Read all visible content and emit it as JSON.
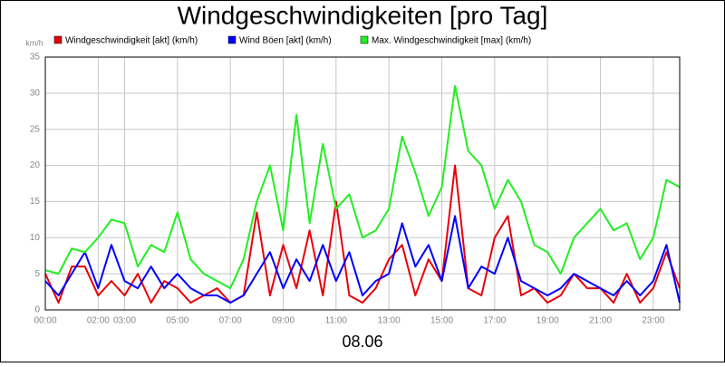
{
  "chart_data": {
    "type": "line",
    "title": "Windgeschwindigkeiten [pro Tag]",
    "y_unit": "km/h",
    "x_label": "08.06",
    "x": [
      0,
      0.5,
      1,
      1.5,
      2,
      2.5,
      3,
      3.5,
      4,
      4.5,
      5,
      5.5,
      6,
      6.5,
      7,
      7.5,
      8,
      8.5,
      9,
      9.5,
      10,
      10.5,
      11,
      11.5,
      12,
      12.5,
      13,
      13.5,
      14,
      14.5,
      15,
      15.5,
      16,
      16.5,
      17,
      17.5,
      18,
      18.5,
      19,
      19.5,
      20,
      20.5,
      21,
      21.5,
      22,
      22.5,
      23,
      23.5,
      24
    ],
    "series": [
      {
        "name": "Windgeschwindigkeit [akt] (km/h)",
        "color": "#e8000a",
        "values": [
          5,
          1,
          6,
          6,
          2,
          4,
          2,
          5,
          1,
          4,
          3,
          1,
          2,
          3,
          1,
          2,
          13.5,
          2,
          9,
          3,
          11,
          2,
          15,
          2,
          1,
          3,
          7,
          9,
          2,
          7,
          4,
          20,
          3,
          2,
          10,
          13,
          2,
          3,
          1,
          2,
          5,
          3,
          3,
          1,
          5,
          1,
          3,
          8,
          3
        ]
      },
      {
        "name": "Wind Böen [akt] (km/h)",
        "color": "#0000ff",
        "values": [
          4,
          2,
          5,
          8,
          3,
          9,
          4,
          3,
          6,
          3,
          5,
          3,
          2,
          2,
          1,
          2,
          5,
          8,
          3,
          7,
          4,
          9,
          4,
          8,
          2,
          4,
          5,
          12,
          6,
          9,
          4,
          13,
          3,
          6,
          5,
          10,
          4,
          3,
          2,
          3,
          5,
          4,
          3,
          2,
          4,
          2,
          4,
          9,
          1
        ]
      },
      {
        "name": "Max. Windgeschwindigkeit [max] (km/h)",
        "color": "#22ee22",
        "values": [
          5.5,
          5,
          8.5,
          8,
          10,
          12.5,
          12,
          6,
          9,
          8,
          13.5,
          7,
          5,
          4,
          3,
          7,
          15,
          20,
          11,
          27,
          12,
          23,
          14,
          16,
          10,
          11,
          14,
          24,
          19,
          13,
          17,
          31,
          22,
          20,
          14,
          18,
          15,
          9,
          8,
          5,
          10,
          12,
          14,
          11,
          12,
          7,
          10,
          18,
          17
        ]
      }
    ],
    "xlim": [
      0,
      24
    ],
    "xticks": [
      {
        "value": 0,
        "label": "00:00"
      },
      {
        "value": 2,
        "label": "02:00"
      },
      {
        "value": 3,
        "label": "03:00"
      },
      {
        "value": 5,
        "label": "05:00"
      },
      {
        "value": 7,
        "label": "07:00"
      },
      {
        "value": 9,
        "label": "09:00"
      },
      {
        "value": 11,
        "label": "11:00"
      },
      {
        "value": 13,
        "label": "13:00"
      },
      {
        "value": 15,
        "label": "15:00"
      },
      {
        "value": 17,
        "label": "17:00"
      },
      {
        "value": 19,
        "label": "19:00"
      },
      {
        "value": 21,
        "label": "21:00"
      },
      {
        "value": 23,
        "label": "23:00"
      }
    ],
    "ylim": [
      0,
      35
    ],
    "yticks": [
      0,
      5,
      10,
      15,
      20,
      25,
      30,
      35
    ],
    "grid": true
  }
}
